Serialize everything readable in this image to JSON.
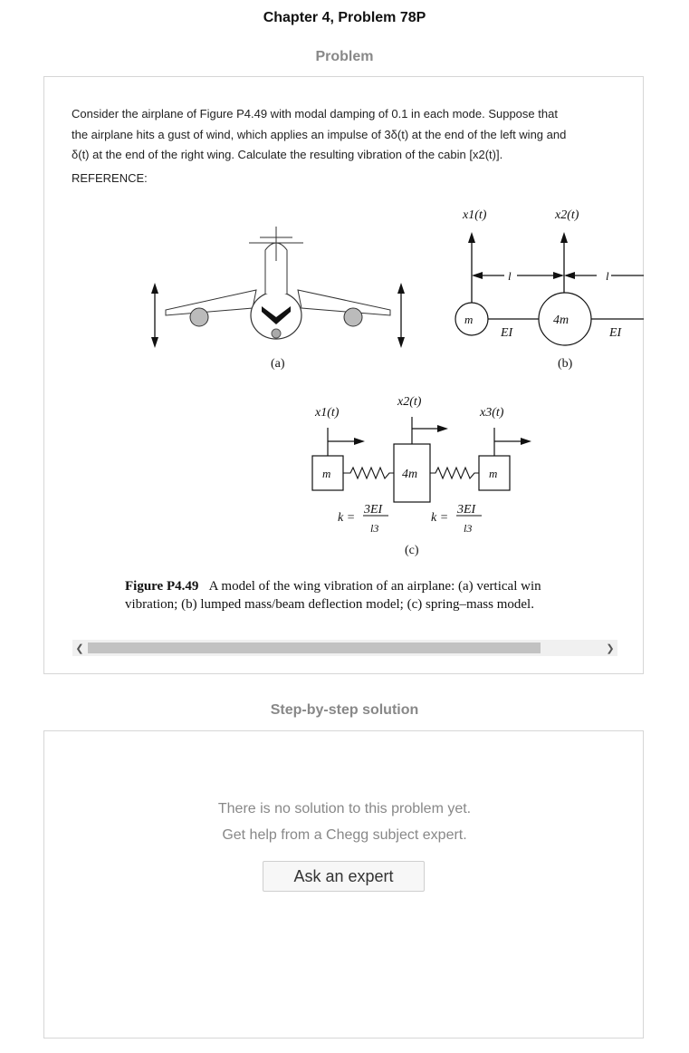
{
  "header": {
    "title": "Chapter 4, Problem 78P"
  },
  "problem": {
    "heading": "Problem",
    "text_line1": "Consider the airplane of Figure P4.49 with modal damping of 0.1 in each mode. Suppose that",
    "text_line2": "the airplane hits a gust of wind, which applies an impulse of 3δ(t) at the end of the left wing and",
    "text_line3": "δ(t) at the end of the right wing. Calculate the resulting vibration of the cabin [x2(t)].",
    "reference": "REFERENCE:"
  },
  "figure": {
    "label_a": "(a)",
    "label_b": "(b)",
    "label_c": "(c)",
    "x1": "x1(t)",
    "x2": "x2(t)",
    "x3": "x3(t)",
    "x3_clipped": "x",
    "l": "l",
    "m": "m",
    "four_m": "4m",
    "ei": "EI",
    "k_eq": "k =",
    "k_num": "3EI",
    "k_den": "l3",
    "caption_bold": "Figure P4.49",
    "caption_line1": "A model of the wing vibration of an airplane: (a) vertical win",
    "caption_line2": "vibration; (b) lumped mass/beam deflection model; (c) spring–mass model."
  },
  "scrollbar": {
    "left_icon": "chevron-left-icon",
    "right_icon": "chevron-right-icon"
  },
  "solution": {
    "heading": "Step-by-step solution",
    "empty_line1": "There is no solution to this problem yet.",
    "empty_line2": "Get help from a Chegg subject expert.",
    "ask_button": "Ask an expert"
  }
}
